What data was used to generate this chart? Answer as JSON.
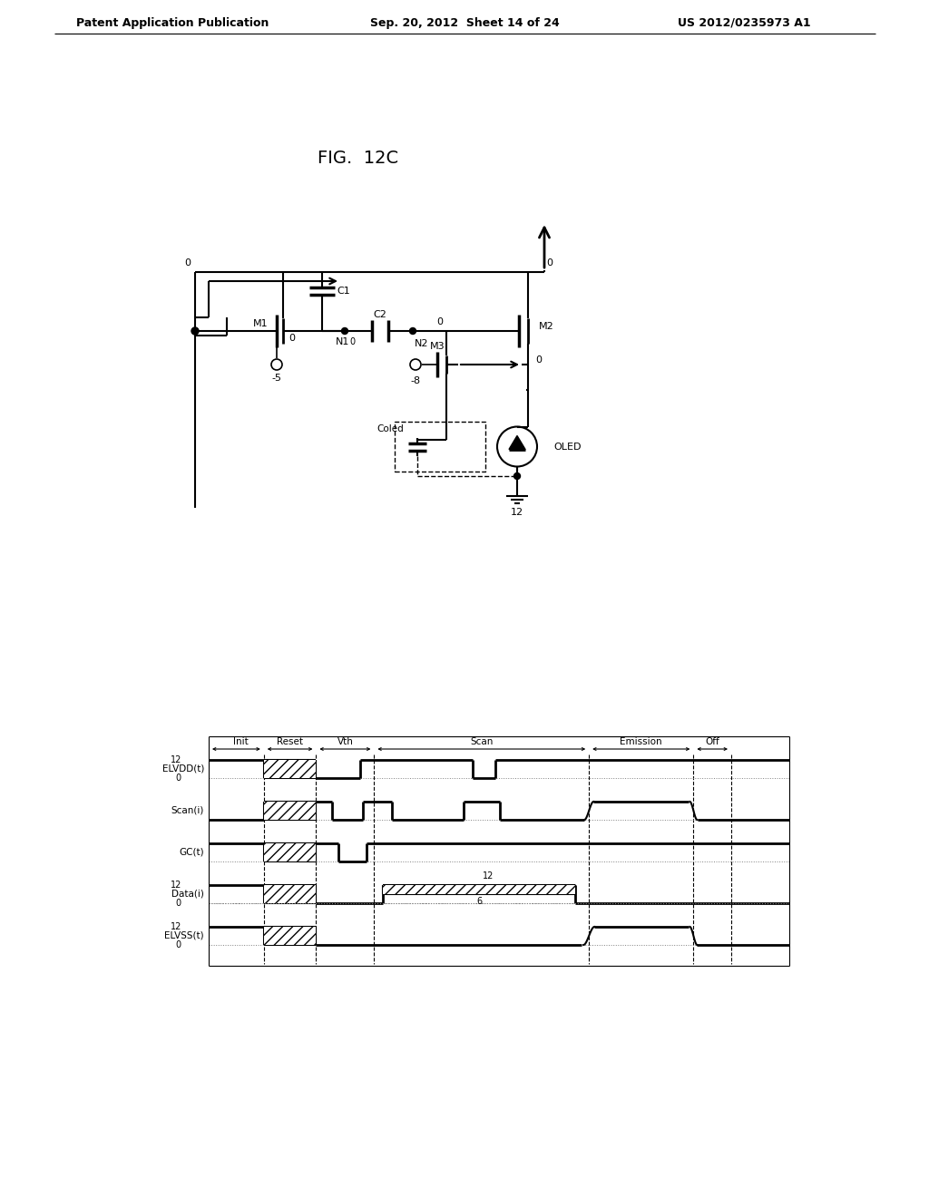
{
  "page_title_left": "Patent Application Publication",
  "page_title_mid": "Sep. 20, 2012  Sheet 14 of 24",
  "page_title_right": "US 2012/0235973 A1",
  "fig_title": "FIG.  12C",
  "background": "#ffffff",
  "timing_labels": [
    "ELVDD(t)",
    "Scan(i)",
    "GC(t)",
    "Data(i)",
    "ELVSS(t)"
  ],
  "phase_labels": [
    "Init",
    "Reset",
    "Vth",
    "Scan",
    "Emission",
    "Off"
  ],
  "circuit_labels": {
    "M1": "M1",
    "M2": "M2",
    "M3": "M3",
    "C1": "C1",
    "C2": "C2",
    "N1": "N1",
    "N2": "N2",
    "OLED": "OLED",
    "Coled": "Coled",
    "v0_topleft": "0",
    "v0_topright": "0",
    "v0_m1drain": "0",
    "v0_n2": "0",
    "v0_m2bot": "0",
    "vneg5": "-5",
    "vneg8": "-8",
    "v12_bot": "12"
  }
}
